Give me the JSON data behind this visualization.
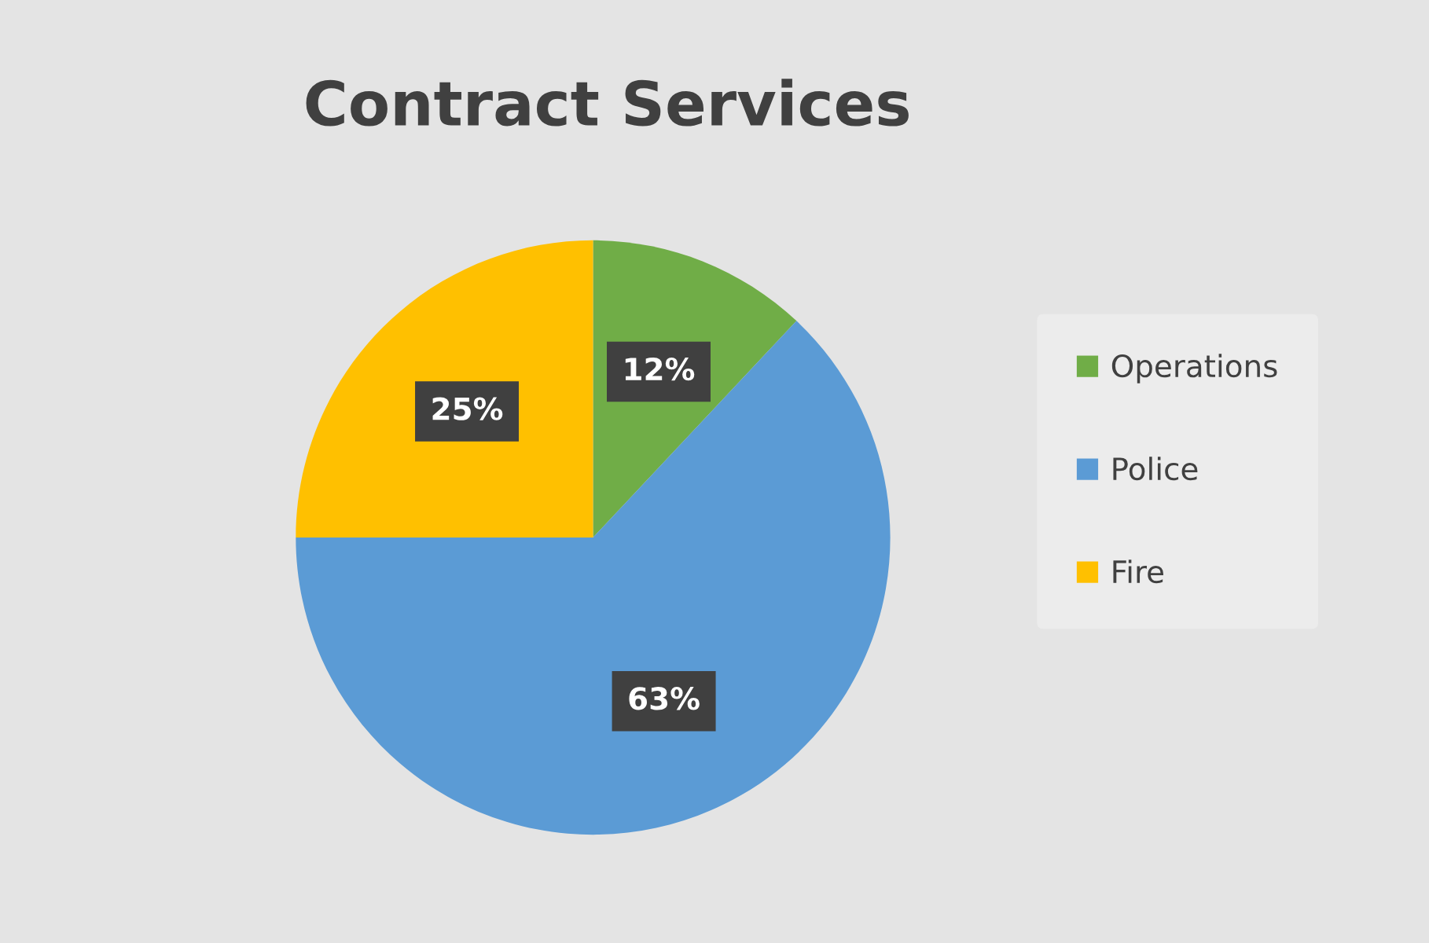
{
  "chart_data": {
    "type": "pie",
    "title": "Contract Services",
    "categories": [
      "Operations",
      "Police",
      "Fire"
    ],
    "values": [
      12,
      63,
      25
    ],
    "colors": [
      "#70ad47",
      "#5b9bd5",
      "#ffc000"
    ],
    "value_labels": [
      "12%",
      "63%",
      "25%"
    ],
    "legend": "right"
  }
}
